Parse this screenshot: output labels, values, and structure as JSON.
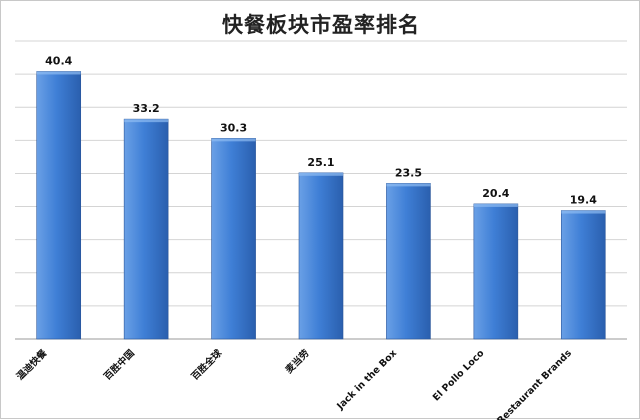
{
  "chart_data": {
    "type": "bar",
    "title": "快餐板块市盈率排名",
    "categories": [
      "温迪快餐",
      "百胜中国",
      "百胜全球",
      "麦当劳",
      "Jack in the Box",
      "El Pollo Loco",
      "Restaurant Brands"
    ],
    "values": [
      40.4,
      33.2,
      30.3,
      25.1,
      23.5,
      20.4,
      19.4
    ],
    "data_labels": [
      "40.4",
      "33.2",
      "30.3",
      "25.1",
      "23.5",
      "20.4",
      "19.4"
    ],
    "xlabel": "",
    "ylabel": "",
    "ylim": [
      0,
      45
    ],
    "grid": true,
    "legend": "none",
    "colors": {
      "bar_light": "#6aa0e6",
      "bar_mid": "#3f7fd6",
      "bar_dark": "#2a5fae",
      "grid": "#d4d4d4",
      "axis": "#9a9a9a"
    }
  }
}
